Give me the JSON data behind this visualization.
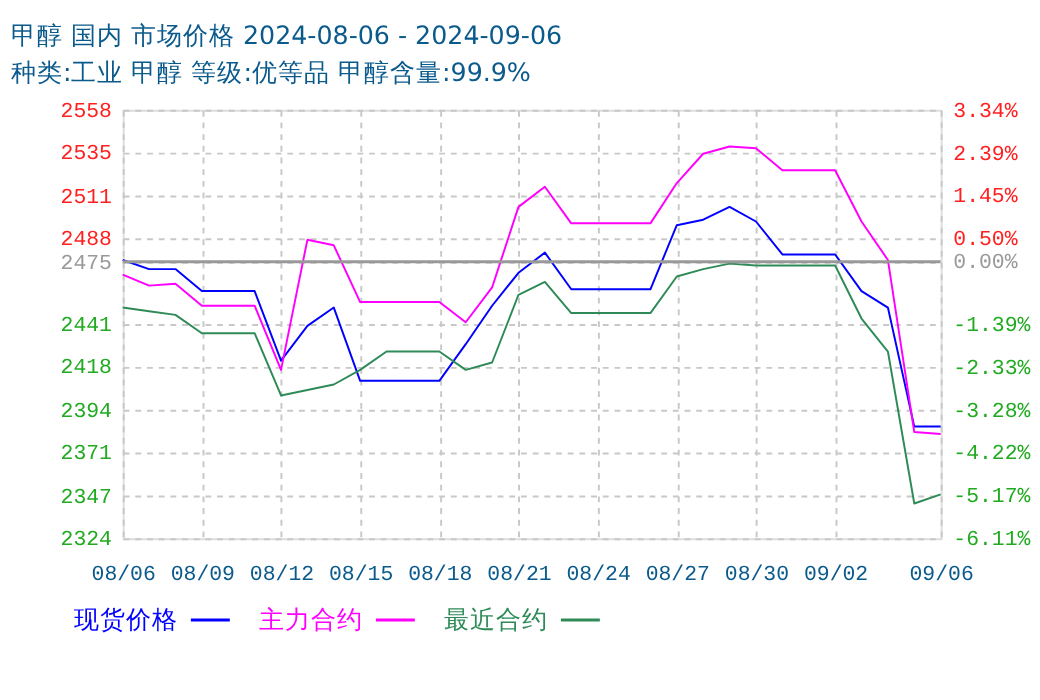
{
  "chart_data": {
    "type": "line",
    "title": "甲醇 国内 市场价格 2024-08-06 - 2024-09-06",
    "subtitle": "种类:工业 甲醇 等级:优等品 甲醇含量:99.9%",
    "x": [
      "2024-08-06",
      "2024-08-07",
      "2024-08-08",
      "2024-08-09",
      "2024-08-10",
      "2024-08-11",
      "2024-08-12",
      "2024-08-13",
      "2024-08-14",
      "2024-08-15",
      "2024-08-16",
      "2024-08-17",
      "2024-08-18",
      "2024-08-19",
      "2024-08-20",
      "2024-08-21",
      "2024-08-22",
      "2024-08-23",
      "2024-08-24",
      "2024-08-25",
      "2024-08-26",
      "2024-08-27",
      "2024-08-28",
      "2024-08-29",
      "2024-08-30",
      "2024-08-31",
      "2024-09-01",
      "2024-09-02",
      "2024-09-03",
      "2024-09-04",
      "2024-09-05",
      "2024-09-06"
    ],
    "series": [
      {
        "name": "现货价格",
        "color": "#0000ff",
        "values": [
          2476,
          2471,
          2471,
          2459,
          2459,
          2459,
          2421,
          2440,
          2450,
          2410,
          2410,
          2410,
          2410,
          2430,
          2451,
          2469,
          2480,
          2460,
          2460,
          2460,
          2460,
          2495,
          2498,
          2505,
          2497,
          2479,
          2479,
          2479,
          2459,
          2450,
          2385,
          2385
        ]
      },
      {
        "name": "主力合约",
        "color": "#ff00ff",
        "values": [
          2468,
          2462,
          2463,
          2451,
          2451,
          2451,
          2416,
          2487,
          2484,
          2453,
          2453,
          2453,
          2453,
          2442,
          2461,
          2505,
          2516,
          2496,
          2496,
          2496,
          2496,
          2518,
          2534,
          2538,
          2537,
          2525,
          2525,
          2525,
          2497,
          2476,
          2382,
          2381
        ]
      },
      {
        "name": "最近合约",
        "color": "#2e8b57",
        "values": [
          2450,
          2448,
          2446,
          2436,
          2436,
          2436,
          2402,
          2405,
          2408,
          2416,
          2426,
          2426,
          2426,
          2416,
          2420,
          2457,
          2464,
          2447,
          2447,
          2447,
          2447,
          2467,
          2471,
          2474,
          2473,
          2473,
          2473,
          2473,
          2444,
          2426,
          2343,
          2348
        ]
      }
    ],
    "xlim": [
      "2024-08-06",
      "2024-09-06"
    ],
    "xticks": [
      {
        "value": "2024-08-06",
        "label": "08/06"
      },
      {
        "value": "2024-08-09",
        "label": "08/09"
      },
      {
        "value": "2024-08-12",
        "label": "08/12"
      },
      {
        "value": "2024-08-15",
        "label": "08/15"
      },
      {
        "value": "2024-08-18",
        "label": "08/18"
      },
      {
        "value": "2024-08-21",
        "label": "08/21"
      },
      {
        "value": "2024-08-24",
        "label": "08/24"
      },
      {
        "value": "2024-08-27",
        "label": "08/27"
      },
      {
        "value": "2024-08-30",
        "label": "08/30"
      },
      {
        "value": "2024-09-02",
        "label": "09/02"
      },
      {
        "value": "2024-09-06",
        "label": "09/06"
      }
    ],
    "ylim": [
      2324,
      2558
    ],
    "yticks": [
      2324,
      2347,
      2371,
      2394,
      2418,
      2441,
      2475,
      2488,
      2511,
      2535,
      2558
    ],
    "y2lim": [
      -6.11,
      3.34
    ],
    "y2ticks": [
      {
        "value": -6.11,
        "label": "-6.11%"
      },
      {
        "value": -5.17,
        "label": "-5.17%"
      },
      {
        "value": -4.22,
        "label": "-4.22%"
      },
      {
        "value": -3.28,
        "label": "-3.28%"
      },
      {
        "value": -2.33,
        "label": "-2.33%"
      },
      {
        "value": -1.39,
        "label": "-1.39%"
      },
      {
        "value": 0,
        "label": "0.00%"
      },
      {
        "value": 0.5,
        "label": "0.50%"
      },
      {
        "value": 1.45,
        "label": "1.45%"
      },
      {
        "value": 2.39,
        "label": "2.39%"
      },
      {
        "value": 3.34,
        "label": "3.34%"
      }
    ],
    "ref_lines": [
      {
        "axis": "y",
        "value": 2475,
        "color": "#999999"
      }
    ],
    "grid": true,
    "legend": "bottom",
    "marker": "none",
    "line_style": "solid"
  }
}
